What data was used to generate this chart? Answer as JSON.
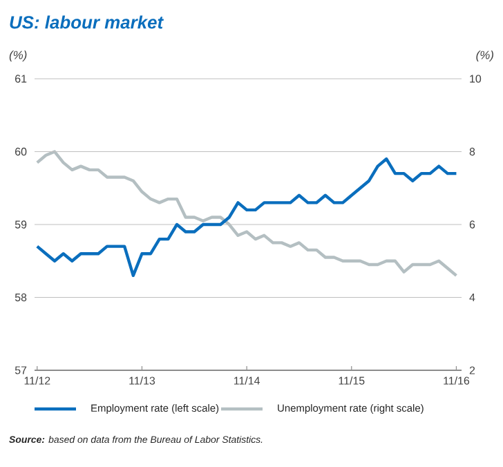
{
  "chart_data": {
    "type": "line",
    "title": "US: labour market",
    "ylabel": "(%)",
    "y2label": "(%)",
    "categories": [
      "11/12",
      null,
      null,
      null,
      null,
      null,
      null,
      null,
      null,
      null,
      null,
      null,
      "11/13",
      null,
      null,
      null,
      null,
      null,
      null,
      null,
      null,
      null,
      null,
      null,
      "11/14",
      null,
      null,
      null,
      null,
      null,
      null,
      null,
      null,
      null,
      null,
      null,
      "11/15",
      null,
      null,
      null,
      null,
      null,
      null,
      null,
      null,
      null,
      null,
      null,
      "11/16"
    ],
    "series": [
      {
        "name": "Employment rate (left scale)",
        "color": "#0a6ebd",
        "values": [
          58.7,
          58.6,
          58.5,
          58.6,
          58.5,
          58.6,
          58.6,
          58.6,
          58.7,
          58.7,
          58.7,
          58.3,
          58.6,
          58.6,
          58.8,
          58.8,
          59.0,
          58.9,
          58.9,
          59.0,
          59.0,
          59.0,
          59.1,
          59.3,
          59.2,
          59.2,
          59.3,
          59.3,
          59.3,
          59.3,
          59.4,
          59.3,
          59.3,
          59.4,
          59.3,
          59.3,
          59.4,
          59.5,
          59.6,
          59.8,
          59.9,
          59.7,
          59.7,
          59.6,
          59.7,
          59.7,
          59.8,
          59.7,
          59.7
        ]
      },
      {
        "name": "Unemployment rate (right scale)",
        "color": "#b4bfc2",
        "axis": "y2",
        "values": [
          7.7,
          7.9,
          8.0,
          7.7,
          7.5,
          7.6,
          7.5,
          7.5,
          7.3,
          7.3,
          7.3,
          7.2,
          6.9,
          6.7,
          6.6,
          6.7,
          6.7,
          6.2,
          6.2,
          6.1,
          6.2,
          6.2,
          6.0,
          5.7,
          5.8,
          5.6,
          5.7,
          5.5,
          5.5,
          5.4,
          5.5,
          5.3,
          5.3,
          5.1,
          5.1,
          5.0,
          5.0,
          5.0,
          4.9,
          4.9,
          5.0,
          5.0,
          4.7,
          4.9,
          4.9,
          4.9,
          5.0,
          4.8,
          4.6
        ]
      }
    ],
    "ylim": [
      57,
      61
    ],
    "yticks": [
      57,
      58,
      59,
      60,
      61
    ],
    "y2lim": [
      2,
      10
    ],
    "y2ticks": [
      2,
      4,
      6,
      8,
      10
    ],
    "grid": "y",
    "legend": "bottom",
    "marker": "none",
    "line_style": "solid",
    "annotations": [
      "**Source:** based on data from the Bureau of Labor Statistics."
    ]
  }
}
